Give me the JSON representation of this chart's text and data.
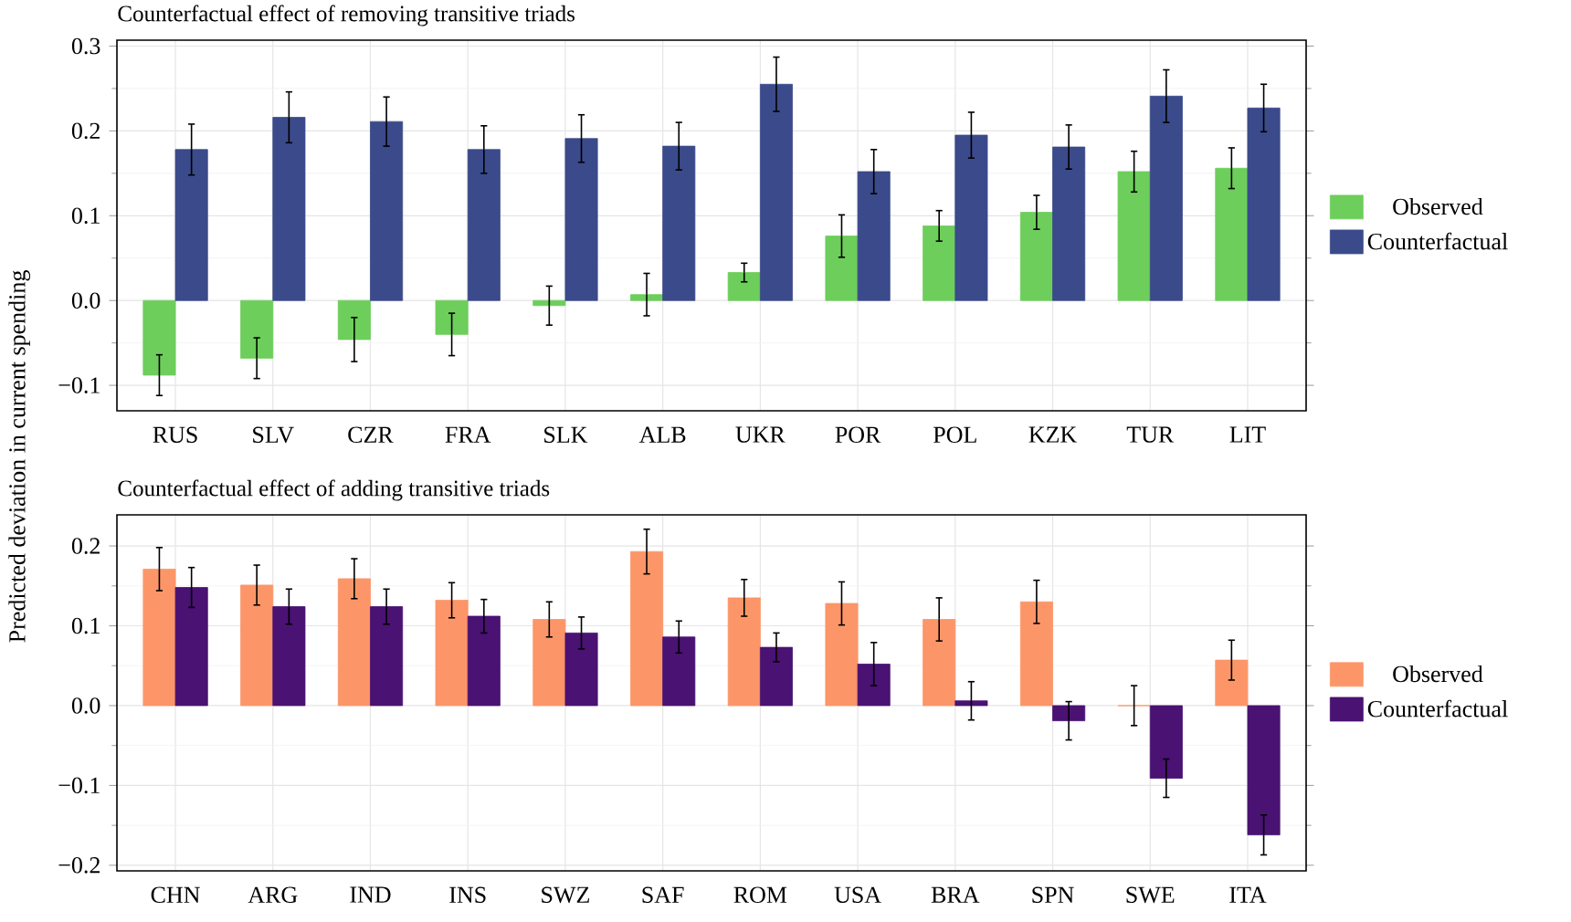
{
  "chart_data": [
    {
      "type": "bar",
      "title": "Counterfactual effect of removing transitive triads",
      "ylabel": "Predicted deviation in current spending",
      "categories": [
        "RUS",
        "SLV",
        "CZR",
        "FRA",
        "SLK",
        "ALB",
        "UKR",
        "POR",
        "POL",
        "KZK",
        "TUR",
        "LIT"
      ],
      "series": [
        {
          "name": "Observed",
          "color": "#6dce5b",
          "values": [
            -0.088,
            -0.068,
            -0.046,
            -0.04,
            -0.006,
            0.007,
            0.033,
            0.076,
            0.088,
            0.104,
            0.152,
            0.156
          ],
          "errors": [
            0.024,
            0.024,
            0.026,
            0.025,
            0.023,
            0.025,
            0.011,
            0.025,
            0.018,
            0.02,
            0.024,
            0.024
          ]
        },
        {
          "name": "Counterfactual",
          "color": "#3b4a8a",
          "values": [
            0.178,
            0.216,
            0.211,
            0.178,
            0.191,
            0.182,
            0.255,
            0.152,
            0.195,
            0.181,
            0.241,
            0.227
          ],
          "errors": [
            0.03,
            0.03,
            0.029,
            0.028,
            0.028,
            0.028,
            0.032,
            0.026,
            0.027,
            0.026,
            0.031,
            0.028
          ]
        }
      ],
      "ylim": [
        -0.13,
        0.307
      ],
      "yticks": [
        {
          "value": -0.1,
          "label": "−0.1"
        },
        {
          "value": 0,
          "label": "0.0"
        },
        {
          "value": 0.1,
          "label": "0.1"
        },
        {
          "value": 0.2,
          "label": "0.2"
        },
        {
          "value": 0.3,
          "label": "0.3"
        }
      ],
      "grid": true,
      "legend": "right"
    },
    {
      "type": "bar",
      "title": "Counterfactual effect of adding transitive triads",
      "categories": [
        "CHN",
        "ARG",
        "IND",
        "INS",
        "SWZ",
        "SAF",
        "ROM",
        "USA",
        "BRA",
        "SPN",
        "SWE",
        "ITA"
      ],
      "series": [
        {
          "name": "Observed",
          "color": "#fc9668",
          "values": [
            0.171,
            0.151,
            0.159,
            0.132,
            0.108,
            0.193,
            0.135,
            0.128,
            0.108,
            0.13,
            0.0,
            0.057
          ],
          "errors": [
            0.027,
            0.025,
            0.025,
            0.022,
            0.022,
            0.028,
            0.023,
            0.027,
            0.027,
            0.027,
            0.025,
            0.025
          ]
        },
        {
          "name": "Counterfactual",
          "color": "#4a1272",
          "values": [
            0.148,
            0.124,
            0.124,
            0.112,
            0.091,
            0.086,
            0.073,
            0.052,
            0.006,
            -0.019,
            -0.091,
            -0.162
          ],
          "errors": [
            0.025,
            0.022,
            0.022,
            0.021,
            0.02,
            0.02,
            0.018,
            0.027,
            0.024,
            0.024,
            0.024,
            0.025
          ]
        }
      ],
      "ylim": [
        -0.207,
        0.239
      ],
      "yticks": [
        {
          "value": -0.2,
          "label": "−0.2"
        },
        {
          "value": -0.1,
          "label": "−0.1"
        },
        {
          "value": 0,
          "label": "0.0"
        },
        {
          "value": 0.1,
          "label": "0.1"
        },
        {
          "value": 0.2,
          "label": "0.2"
        }
      ],
      "grid": true,
      "legend": "right"
    }
  ]
}
